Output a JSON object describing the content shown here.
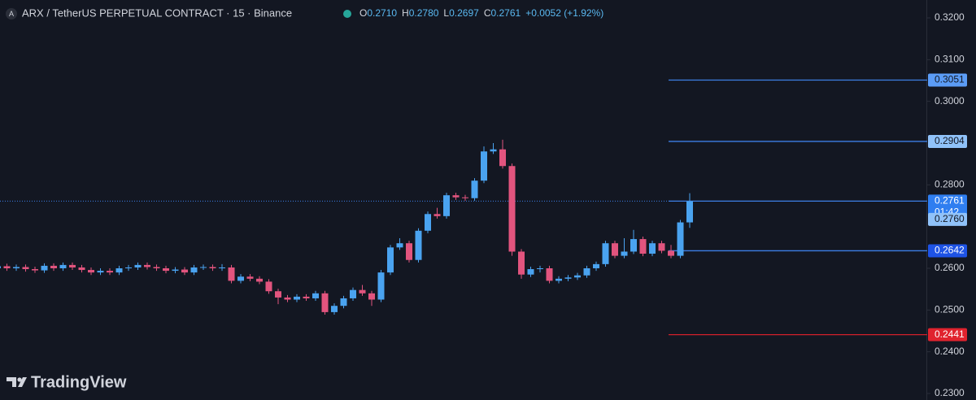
{
  "chart_data": {
    "type": "candlestick",
    "title": "ARX / TetherUS PERPETUAL CONTRACT · 15 · Binance",
    "icon_letter": "A",
    "legend": [
      {
        "key": "O",
        "text": "0.2710"
      },
      {
        "key": "H",
        "text": "0.2780"
      },
      {
        "key": "L",
        "text": "0.2697"
      },
      {
        "key": "C",
        "text": "0.2761"
      }
    ],
    "change": "+0.0052 (+1.92%)",
    "watermark": "TradingView",
    "up_color": "#4aa3f0",
    "down_color": "#e2547e",
    "ylim": [
      0.23,
      0.32
    ],
    "yticks": [
      {
        "value": 0.32,
        "label": "0.3200"
      },
      {
        "value": 0.31,
        "label": "0.3100"
      },
      {
        "value": 0.3,
        "label": "0.3000"
      },
      {
        "value": 0.28,
        "label": "0.2800"
      },
      {
        "value": 0.26,
        "label": "0.2600"
      },
      {
        "value": 0.25,
        "label": "0.2500"
      },
      {
        "value": 0.24,
        "label": "0.2400"
      },
      {
        "value": 0.23,
        "label": "0.2300"
      }
    ],
    "open": [
      0.26,
      0.2605,
      0.26,
      0.2603,
      0.2598,
      0.2595,
      0.2606,
      0.26,
      0.2608,
      0.2602,
      0.2596,
      0.259,
      0.2594,
      0.259,
      0.26,
      0.2602,
      0.2608,
      0.2603,
      0.26,
      0.2594,
      0.2597,
      0.259,
      0.2602,
      0.2603,
      0.26,
      0.2602,
      0.257,
      0.258,
      0.2575,
      0.2568,
      0.2545,
      0.253,
      0.2525,
      0.2532,
      0.2528,
      0.254,
      0.2495,
      0.251,
      0.2528,
      0.2548,
      0.254,
      0.2525,
      0.259,
      0.265,
      0.266,
      0.262,
      0.269,
      0.273,
      0.2725,
      0.2775,
      0.277,
      0.2768,
      0.281,
      0.288,
      0.2885,
      0.2845,
      0.264,
      0.2585,
      0.2598,
      0.26,
      0.257,
      0.2575,
      0.2578,
      0.2583,
      0.26,
      0.261,
      0.266,
      0.263,
      0.264,
      0.267,
      0.2635,
      0.266,
      0.2642,
      0.263,
      0.271
    ],
    "high": [
      0.2611,
      0.2611,
      0.2609,
      0.2609,
      0.2604,
      0.2612,
      0.2612,
      0.2614,
      0.2614,
      0.2608,
      0.2602,
      0.26,
      0.26,
      0.2606,
      0.2608,
      0.2614,
      0.2614,
      0.2609,
      0.2606,
      0.2603,
      0.2603,
      0.2608,
      0.2609,
      0.2609,
      0.261,
      0.2608,
      0.2586,
      0.2586,
      0.2581,
      0.2574,
      0.2551,
      0.2536,
      0.2538,
      0.2538,
      0.2546,
      0.2546,
      0.2516,
      0.2534,
      0.2554,
      0.256,
      0.2546,
      0.2596,
      0.2656,
      0.2672,
      0.2666,
      0.2696,
      0.2736,
      0.2745,
      0.2781,
      0.2781,
      0.2776,
      0.2816,
      0.2892,
      0.29,
      0.2908,
      0.2851,
      0.2646,
      0.2604,
      0.2606,
      0.2606,
      0.2581,
      0.2584,
      0.2589,
      0.2606,
      0.2616,
      0.2666,
      0.2666,
      0.2672,
      0.2692,
      0.2676,
      0.2666,
      0.2666,
      0.2656,
      0.2716,
      0.278
    ],
    "low": [
      0.2594,
      0.2594,
      0.2594,
      0.2592,
      0.2589,
      0.2589,
      0.2594,
      0.2594,
      0.2596,
      0.259,
      0.2584,
      0.2584,
      0.2584,
      0.2584,
      0.2594,
      0.2596,
      0.2597,
      0.2594,
      0.2588,
      0.2588,
      0.2584,
      0.2584,
      0.2596,
      0.2594,
      0.2594,
      0.2564,
      0.2564,
      0.2569,
      0.2562,
      0.2539,
      0.2514,
      0.2519,
      0.2519,
      0.2522,
      0.2522,
      0.2489,
      0.2489,
      0.2504,
      0.2522,
      0.2534,
      0.251,
      0.2519,
      0.2584,
      0.2644,
      0.2614,
      0.2614,
      0.2684,
      0.2719,
      0.2719,
      0.2764,
      0.2762,
      0.2762,
      0.2804,
      0.2874,
      0.2839,
      0.263,
      0.2575,
      0.2579,
      0.259,
      0.2564,
      0.2564,
      0.2569,
      0.2572,
      0.2577,
      0.2594,
      0.2604,
      0.2624,
      0.2624,
      0.2634,
      0.2629,
      0.2629,
      0.2636,
      0.2624,
      0.2624,
      0.2697
    ],
    "close": [
      0.2605,
      0.26,
      0.2603,
      0.2598,
      0.2595,
      0.2606,
      0.26,
      0.2608,
      0.2602,
      0.2596,
      0.259,
      0.2594,
      0.259,
      0.26,
      0.2602,
      0.2608,
      0.2603,
      0.26,
      0.2594,
      0.2597,
      0.259,
      0.2602,
      0.2603,
      0.26,
      0.2602,
      0.257,
      0.258,
      0.2575,
      0.2568,
      0.2545,
      0.253,
      0.2525,
      0.2532,
      0.2528,
      0.254,
      0.2495,
      0.251,
      0.2528,
      0.2548,
      0.254,
      0.2525,
      0.259,
      0.265,
      0.266,
      0.262,
      0.269,
      0.273,
      0.2725,
      0.2775,
      0.277,
      0.2768,
      0.281,
      0.288,
      0.2885,
      0.2845,
      0.264,
      0.2585,
      0.2598,
      0.26,
      0.257,
      0.2575,
      0.2578,
      0.2583,
      0.26,
      0.261,
      0.266,
      0.263,
      0.264,
      0.267,
      0.2635,
      0.266,
      0.2642,
      0.263,
      0.271,
      0.2761
    ],
    "levels": [
      {
        "value": 0.3051,
        "label": "0.3051",
        "color": "#3d7fe6",
        "label_bg": "#5b9cf6",
        "label_fg": "#131722"
      },
      {
        "value": 0.2904,
        "label": "0.2904",
        "color": "#3d7fe6",
        "label_bg": "#90c2f9",
        "label_fg": "#131722"
      },
      {
        "value": 0.2761,
        "label": "0.2761",
        "color": "#3d7fe6",
        "label_bg": "#2f7ef0",
        "label_fg": "#ffffff",
        "countdown": "01:42"
      },
      {
        "value": 0.2642,
        "label": "0.2642",
        "color": "#3d7fe6",
        "label_bg": "#1e53e5",
        "label_fg": "#ffffff"
      },
      {
        "value": 0.2441,
        "label": "0.2441",
        "color": "#d1202b",
        "label_bg": "#e0232e",
        "label_fg": "#ffffff"
      }
    ],
    "extra_labels": [
      {
        "value": 0.276,
        "label": "0.2760",
        "label_bg": "#90c2f9",
        "label_fg": "#131722"
      }
    ]
  }
}
